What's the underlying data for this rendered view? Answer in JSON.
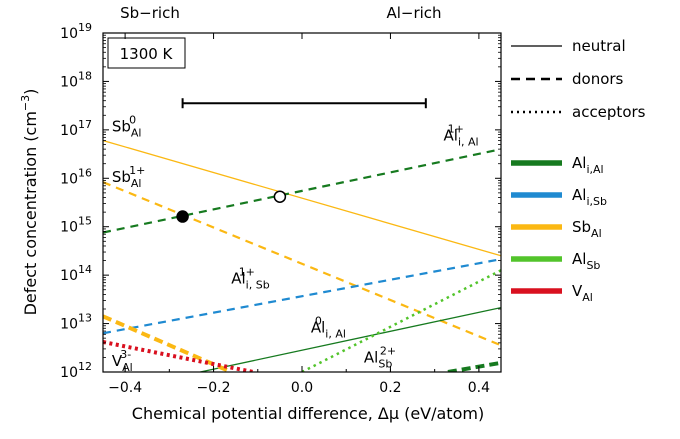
{
  "chart_data": {
    "type": "line",
    "xlabel": "Chemical potential difference, Δμ (eV/atom)",
    "ylabel_main": "Defect concentration (cm",
    "ylabel_unit_sup": "−3",
    "ylabel_close": ")",
    "xlim": [
      -0.45,
      0.45
    ],
    "ylim_log10": [
      12,
      19
    ],
    "log_y": true,
    "grid": false,
    "x_ticks": [
      -0.4,
      -0.2,
      0.0,
      0.2,
      0.4
    ],
    "x_tick_labels": [
      "−0.4",
      "−0.2",
      "0.0",
      "0.2",
      "0.4"
    ],
    "y_ticks": [
      12,
      13,
      14,
      15,
      16,
      17,
      18,
      19
    ],
    "y_tick_base": "10",
    "top_labels": {
      "left": "Sb−rich",
      "right": "Al−rich"
    },
    "temperature_box": "1300 K",
    "range_bar": {
      "x_from": -0.27,
      "x_to": 0.28,
      "log10_y": 17.55
    },
    "markers": [
      {
        "type": "filled",
        "x": -0.27,
        "log10_y": 15.21
      },
      {
        "type": "open",
        "x": -0.05,
        "log10_y": 15.62
      }
    ],
    "series": [
      {
        "name": "Sb_Al^0",
        "defect": "Sb_Al",
        "style": "neutral",
        "points": [
          [
            -0.45,
            16.78
          ],
          [
            0.45,
            14.4
          ]
        ]
      },
      {
        "name": "Sb_Al^1+",
        "defect": "Sb_Al",
        "style": "donor",
        "points": [
          [
            -0.45,
            15.92
          ],
          [
            0.45,
            12.55
          ]
        ]
      },
      {
        "name": "Al_i,Al^1+",
        "defect": "Al_i,Al",
        "style": "donor",
        "points": [
          [
            -0.45,
            14.88
          ],
          [
            0.45,
            16.6
          ]
        ]
      },
      {
        "name": "Al_i,Sb^1+",
        "defect": "Al_i,Sb",
        "style": "donor",
        "points": [
          [
            -0.45,
            12.8
          ],
          [
            0.45,
            14.33
          ]
        ]
      },
      {
        "name": "Al_i,Al^0",
        "defect": "Al_i,Al",
        "style": "neutral",
        "points": [
          [
            -0.23,
            12.0
          ],
          [
            0.45,
            13.33
          ]
        ]
      },
      {
        "name": "Al_Sb^2+",
        "defect": "Al_Sb",
        "style": "acceptor",
        "points": [
          [
            0.0,
            12.0
          ],
          [
            0.45,
            14.1
          ]
        ]
      },
      {
        "name": "Al_Sb acceptor (lower)",
        "defect": "Al_i,Al",
        "style": "donor_thick",
        "points": [
          [
            0.33,
            12.0
          ],
          [
            0.45,
            12.19
          ]
        ]
      },
      {
        "name": "Sb_Al (thick)",
        "defect": "Sb_Al",
        "style": "donor_thick",
        "points": [
          [
            -0.45,
            13.15
          ],
          [
            -0.16,
            12.0
          ]
        ]
      },
      {
        "name": "V_Al^3-",
        "defect": "V_Al",
        "style": "acceptor_thick",
        "points": [
          [
            -0.45,
            12.62
          ],
          [
            -0.11,
            12.0
          ]
        ]
      }
    ],
    "series_labels": [
      {
        "base": "Sb",
        "sub": "Al",
        "sup": "0",
        "x": -0.43,
        "log10_y": 16.97
      },
      {
        "base": "Sb",
        "sub": "Al",
        "sup": "1+",
        "x": -0.43,
        "log10_y": 15.92
      },
      {
        "base": "Al",
        "sub": "i, Al",
        "sup": "1+",
        "x": 0.32,
        "log10_y": 16.78
      },
      {
        "base": "Al",
        "sub": "i, Sb",
        "sup": "1+",
        "x": -0.16,
        "log10_y": 13.83
      },
      {
        "base": "Al",
        "sub": "i, Al",
        "sup": "0",
        "x": 0.02,
        "log10_y": 12.82
      },
      {
        "base": "Al",
        "sub": "Sb",
        "sup": "2+",
        "x": 0.14,
        "log10_y": 12.2
      },
      {
        "base": "V",
        "sub": "Al",
        "sup": "3-",
        "x": -0.43,
        "log10_y": 12.12
      }
    ],
    "legend": {
      "placement": "right",
      "styles": [
        {
          "label": "neutral",
          "dash": "solid"
        },
        {
          "label": "donors",
          "dash": "dashed"
        },
        {
          "label": "acceptors",
          "dash": "dotted"
        }
      ],
      "defects": [
        {
          "base": "Al",
          "sub": "i,Al",
          "color": "#167a1f"
        },
        {
          "base": "Al",
          "sub": "i,Sb",
          "color": "#1f8ad1"
        },
        {
          "base": "Sb",
          "sub": "Al",
          "color": "#fbb813"
        },
        {
          "base": "Al",
          "sub": "Sb",
          "color": "#52c42b"
        },
        {
          "base": "V",
          "sub": "Al",
          "color": "#d9101f"
        }
      ]
    },
    "colors": {
      "Al_i,Al": "#167a1f",
      "Al_i,Sb": "#1f8ad1",
      "Sb_Al": "#fbb813",
      "Al_Sb": "#52c42b",
      "V_Al": "#d9101f"
    }
  }
}
